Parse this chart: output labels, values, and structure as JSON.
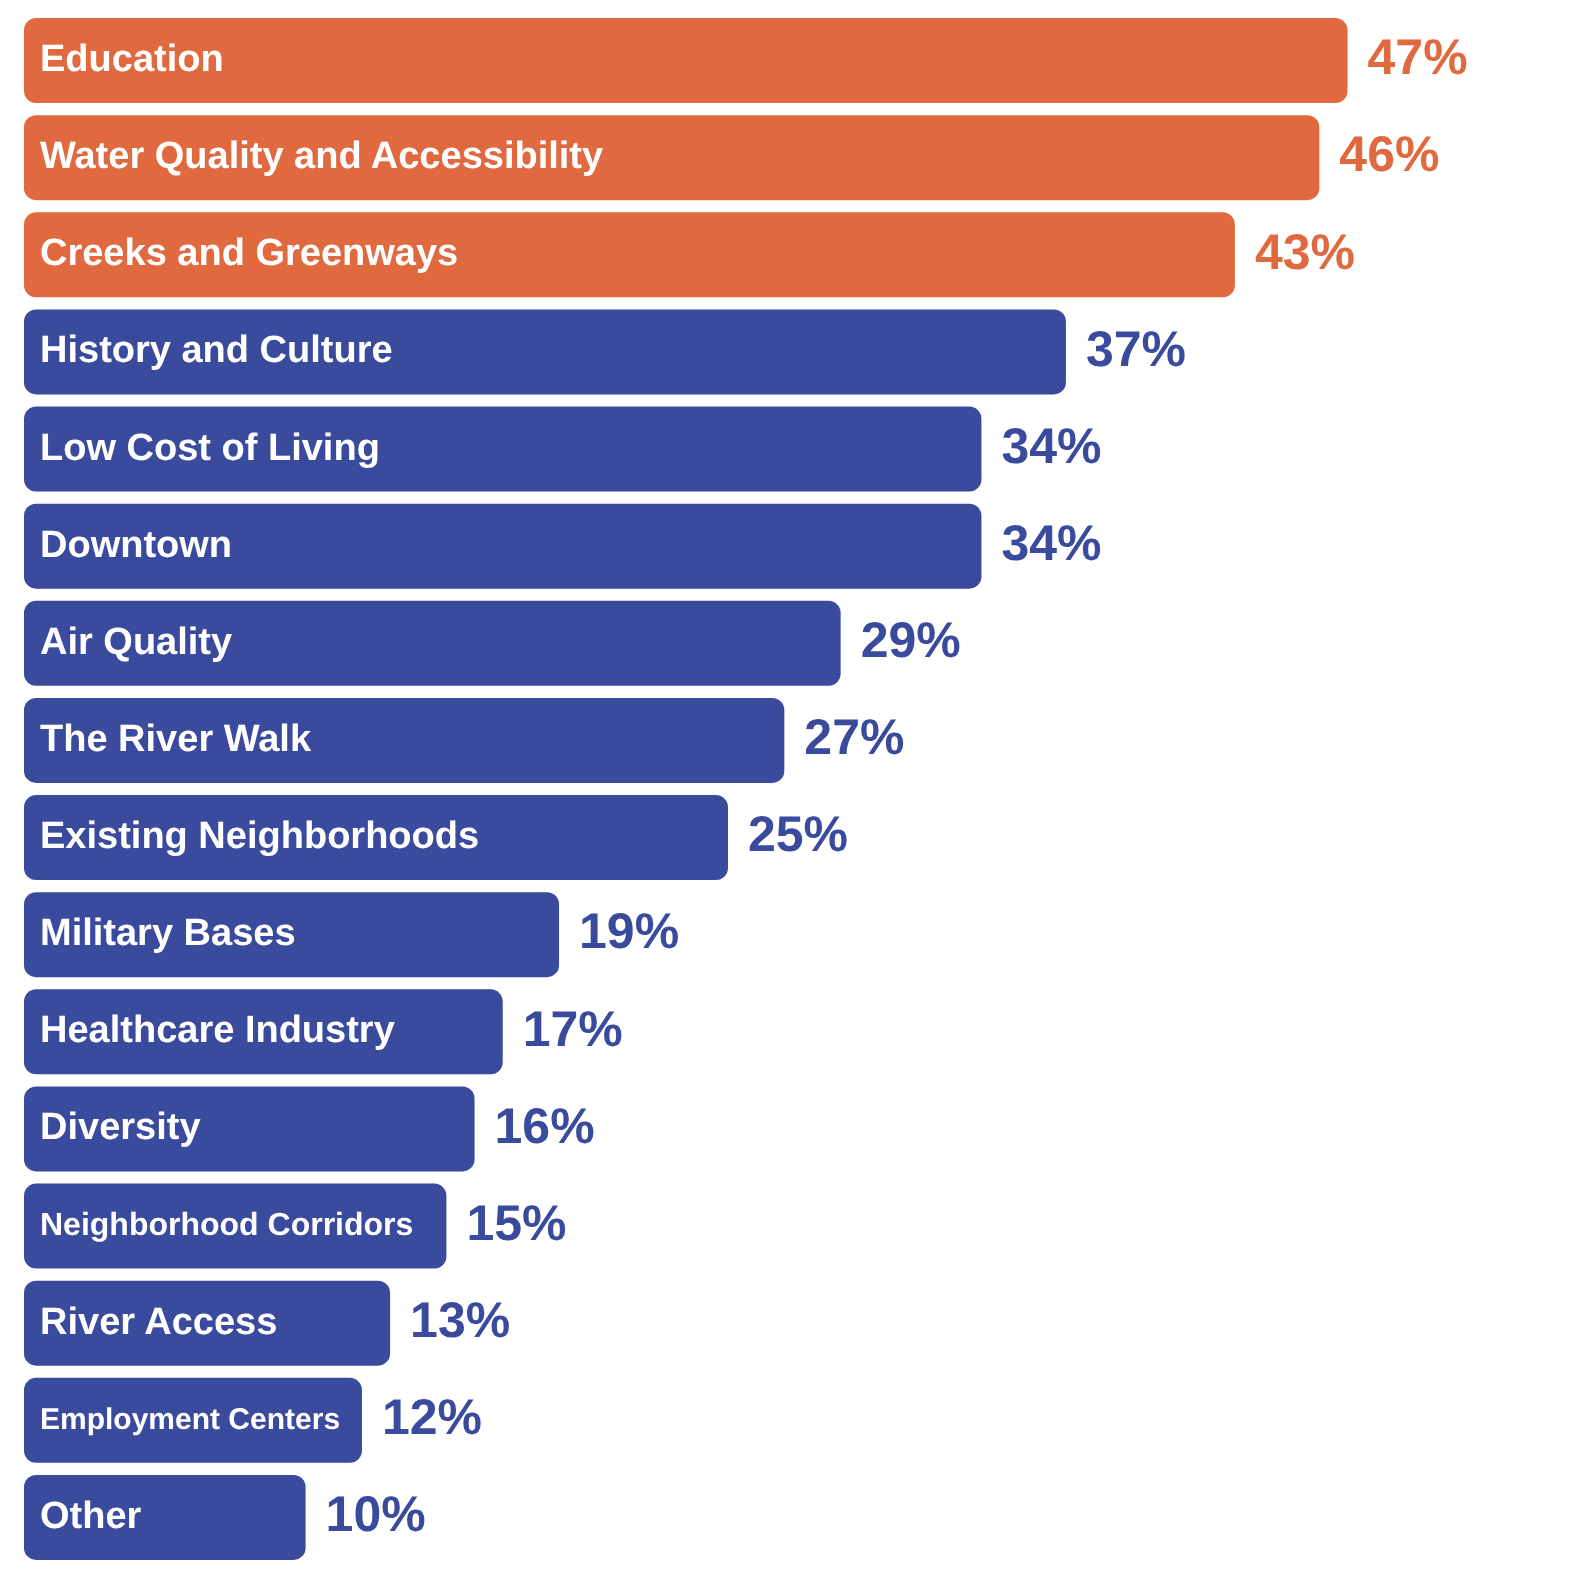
{
  "chart_data": {
    "type": "bar",
    "orientation": "horizontal",
    "categories": [
      "Education",
      "Water Quality and Accessibility",
      "Creeks and Greenways",
      "History and Culture",
      "Low Cost of Living",
      "Downtown",
      "Air Quality",
      "The River Walk",
      "Existing Neighborhoods",
      "Military Bases",
      "Healthcare Industry",
      "Diversity",
      "Neighborhood Corridors",
      "River Access",
      "Employment Centers",
      "Other"
    ],
    "values": [
      47,
      46,
      43,
      37,
      34,
      34,
      29,
      27,
      25,
      19,
      17,
      16,
      15,
      13,
      12,
      10
    ],
    "value_labels": [
      "47%",
      "46%",
      "43%",
      "37%",
      "34%",
      "34%",
      "29%",
      "27%",
      "25%",
      "19%",
      "17%",
      "16%",
      "15%",
      "13%",
      "12%",
      "10%"
    ],
    "colors": [
      "#e0693f",
      "#e0693f",
      "#e0693f",
      "#3a4a9c",
      "#3a4a9c",
      "#3a4a9c",
      "#3a4a9c",
      "#3a4a9c",
      "#3a4a9c",
      "#3a4a9c",
      "#3a4a9c",
      "#3a4a9c",
      "#3a4a9c",
      "#3a4a9c",
      "#3a4a9c",
      "#3a4a9c"
    ],
    "legend": false
  }
}
